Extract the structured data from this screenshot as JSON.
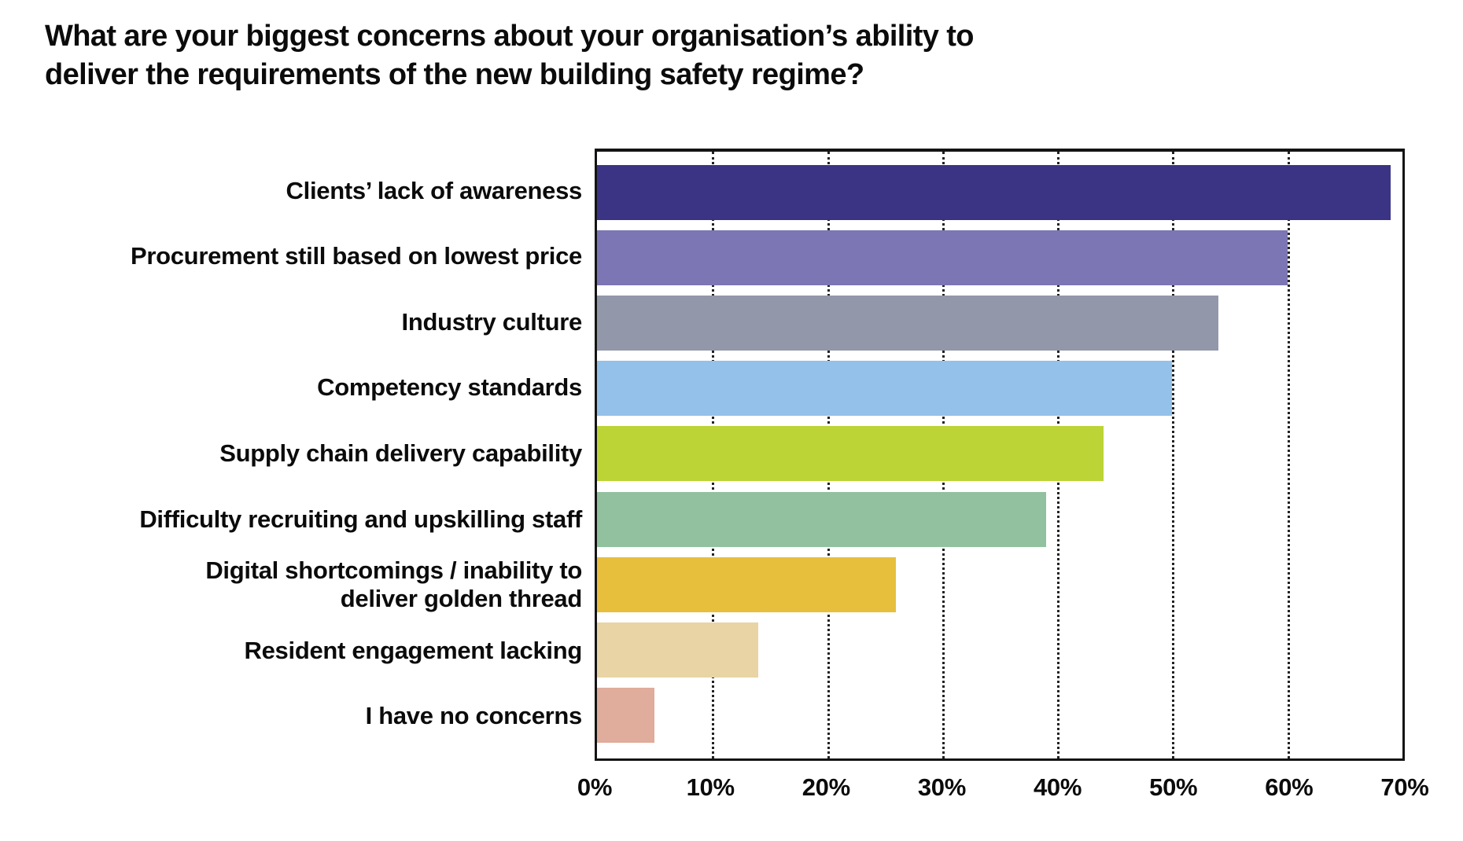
{
  "chart_data": {
    "type": "bar",
    "orientation": "horizontal",
    "title": "What are your biggest concerns about your organisation’s ability to\ndeliver the requirements of the new building safety regime?",
    "categories": [
      "Clients’ lack of awareness",
      "Procurement still based on lowest price",
      "Industry culture",
      "Competency standards",
      "Supply chain delivery capability",
      "Difficulty recruiting and upskilling staff",
      "Digital shortcomings / inability to\ndeliver golden thread",
      "Resident engagement lacking",
      "I have no concerns"
    ],
    "values": [
      69,
      60,
      54,
      50,
      44,
      39,
      26,
      14,
      5
    ],
    "unit": "%",
    "bar_colors": [
      "#3B3485",
      "#7C76B4",
      "#9298AA",
      "#94C1EA",
      "#BCD435",
      "#91C19E",
      "#E7BF3D",
      "#E8D4A4",
      "#E0AC9B"
    ],
    "xlim": [
      0,
      70
    ],
    "x_tick_labels": [
      "0%",
      "10%",
      "20%",
      "30%",
      "40%",
      "50%",
      "60%",
      "70%"
    ],
    "grid": "dotted-vertical-gridlines",
    "legend": "none",
    "axis_color": "#141414",
    "text_color": "#0b0b0c",
    "background": "#ffffff"
  }
}
